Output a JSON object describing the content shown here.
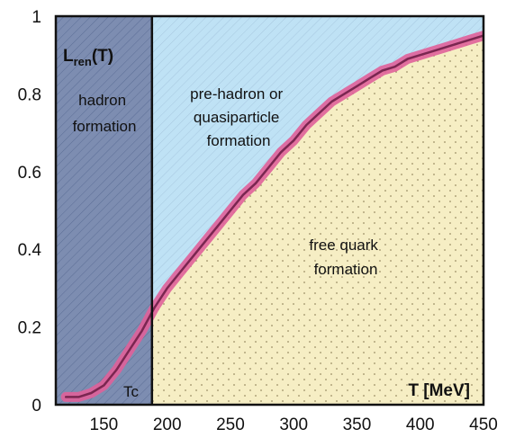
{
  "chart_data": {
    "type": "area",
    "title": "",
    "ylabel": "Lren(T)",
    "ylabel_main": "L",
    "ylabel_sub": "ren",
    "ylabel_arg": "(T)",
    "xlabel": "T [MeV]",
    "xlim": [
      112,
      450
    ],
    "ylim": [
      0,
      1
    ],
    "x_ticks": [
      "150",
      "200",
      "250",
      "300",
      "350",
      "400",
      "450"
    ],
    "x_tick_values": [
      150,
      200,
      250,
      300,
      350,
      400,
      450
    ],
    "y_ticks": [
      "0",
      "0.2",
      "0.4",
      "0.6",
      "0.8",
      "1"
    ],
    "y_tick_values": [
      0,
      0.2,
      0.4,
      0.6,
      0.8,
      1
    ],
    "tc_label": "Tc",
    "tc_value": 188,
    "series": [
      {
        "x": [
          120,
          130,
          140,
          150,
          160,
          170,
          180,
          190,
          200,
          210,
          220,
          230,
          240,
          250,
          260,
          270,
          280,
          290,
          300,
          310,
          320,
          330,
          340,
          350,
          360,
          370,
          380,
          390,
          400,
          410,
          420,
          430,
          440,
          450
        ],
        "values": [
          0.02,
          0.02,
          0.03,
          0.05,
          0.09,
          0.14,
          0.19,
          0.25,
          0.3,
          0.34,
          0.38,
          0.42,
          0.46,
          0.5,
          0.54,
          0.57,
          0.61,
          0.65,
          0.68,
          0.72,
          0.75,
          0.78,
          0.8,
          0.82,
          0.84,
          0.86,
          0.87,
          0.89,
          0.9,
          0.91,
          0.92,
          0.93,
          0.94,
          0.95
        ]
      }
    ],
    "regions": {
      "hadron": "hadron formation",
      "prehadron": "pre-hadron or quasiparticle formation",
      "freequark": "free quark formation"
    },
    "region_lines": {
      "hadron": [
        "hadron",
        "formation"
      ],
      "prehadron": [
        "pre-hadron or",
        "quasiparticle",
        "formation"
      ],
      "freequark": [
        "free quark",
        "formation"
      ]
    },
    "colors": {
      "hadron_fill": "#7d8db1",
      "upper_fill": "#bfe2f5",
      "lower_fill": "#f6eec4",
      "curve_band": "#e0609a",
      "curve_line": "#7a2650",
      "frame": "#111111"
    }
  }
}
